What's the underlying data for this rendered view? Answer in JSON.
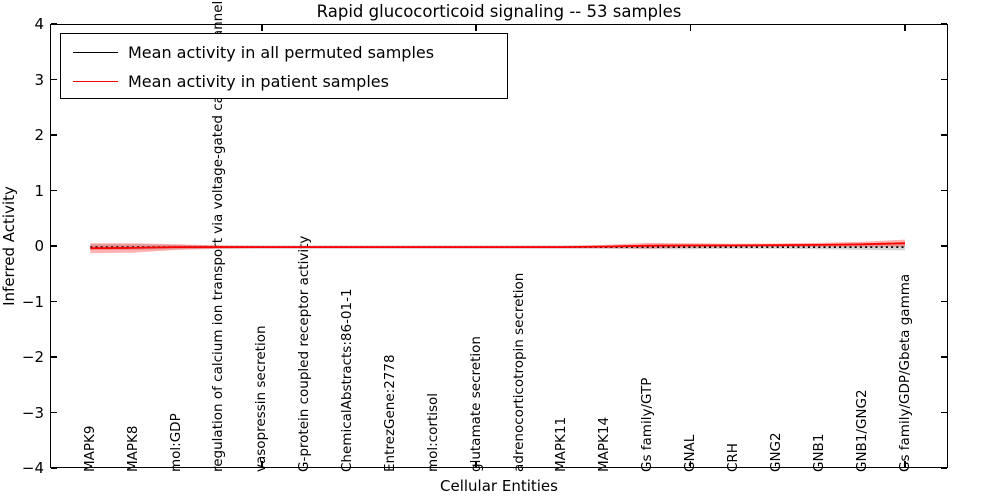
{
  "window": {
    "kind": "matplotlib-figure"
  },
  "chart_data": {
    "type": "line",
    "title": "Rapid glucocorticoid signaling -- 53 samples",
    "xlabel": "Cellular Entities",
    "ylabel": "Inferred Activity",
    "ylim": [
      -4,
      4
    ],
    "grid": false,
    "legend_position": "upper left",
    "yticks": [
      {
        "value": 4,
        "label": "4"
      },
      {
        "value": 3,
        "label": "3"
      },
      {
        "value": 2,
        "label": "2"
      },
      {
        "value": 1,
        "label": "1"
      },
      {
        "value": 0,
        "label": "0"
      },
      {
        "value": -1,
        "label": "−1"
      },
      {
        "value": -2,
        "label": "−2"
      },
      {
        "value": -3,
        "label": "−3"
      },
      {
        "value": -4,
        "label": "−4"
      }
    ],
    "categories": [
      "MAPK9",
      "MAPK8",
      "mol:GDP",
      "regulation of calcium ion transport via voltage-gated calcium channel",
      "vasopressin secretion",
      "G-protein coupled receptor activity",
      "ChemicalAbstracts:86-01-1",
      "EntrezGene:2778",
      "mol:cortisol",
      "glutamate secretion",
      "adrenocorticotropin secretion",
      "MAPK11",
      "MAPK14",
      "Gs family/GTP",
      "GNAL",
      "CRH",
      "GNG2",
      "GNB1",
      "GNB1/GNG2",
      "Gs family/GDP/Gbeta gamma"
    ],
    "x_tick_indices": [
      4,
      9,
      14,
      19
    ],
    "series": [
      {
        "name": "Mean activity in all permuted samples",
        "color": "#000000",
        "style": "dotted",
        "band_color": "rgba(90,90,90,0.25)",
        "values": [
          -0.02,
          -0.02,
          -0.02,
          -0.02,
          -0.02,
          -0.02,
          -0.02,
          -0.02,
          -0.02,
          -0.02,
          -0.02,
          -0.02,
          -0.02,
          -0.02,
          -0.02,
          -0.02,
          -0.02,
          -0.02,
          -0.02,
          -0.02
        ],
        "band": [
          0.05,
          0.05,
          0.04,
          0.03,
          0.03,
          0.03,
          0.03,
          0.03,
          0.03,
          0.03,
          0.03,
          0.03,
          0.03,
          0.04,
          0.04,
          0.03,
          0.03,
          0.04,
          0.05,
          0.06
        ]
      },
      {
        "name": "Mean activity in patient samples",
        "color": "#ff0000",
        "style": "solid",
        "band_color": "rgba(255,0,0,0.30)",
        "values": [
          -0.04,
          -0.035,
          -0.02,
          -0.02,
          -0.02,
          -0.02,
          -0.02,
          -0.02,
          -0.02,
          -0.02,
          -0.02,
          -0.02,
          -0.01,
          0.005,
          0.01,
          0.01,
          0.015,
          0.02,
          0.03,
          0.05
        ],
        "band": [
          0.09,
          0.085,
          0.05,
          0.03,
          0.02,
          0.02,
          0.02,
          0.02,
          0.02,
          0.02,
          0.02,
          0.02,
          0.03,
          0.05,
          0.04,
          0.03,
          0.03,
          0.035,
          0.045,
          0.065
        ]
      }
    ]
  }
}
